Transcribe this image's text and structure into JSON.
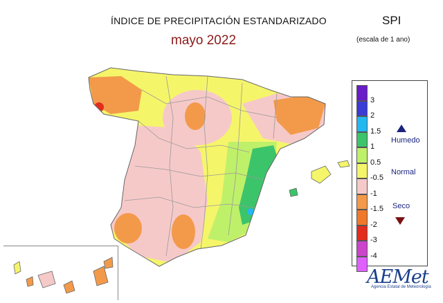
{
  "header": {
    "title": "ÍNDICE DE PRECIPITACIÓN ESTANDARIZADO",
    "subtitle": "mayo 2022",
    "index_label": "SPI",
    "scale_note": "(escala de 1 ano)"
  },
  "legend": {
    "ticks": [
      "3",
      "2",
      "1.5",
      "1",
      "0.5",
      "-0.5",
      "-1",
      "-1.5",
      "-2",
      "-3",
      "-4"
    ],
    "colors": [
      "#6a1cc8",
      "#3b3bd6",
      "#22b8f0",
      "#3cc46a",
      "#bff06a",
      "#f5f56a",
      "#f6c9c9",
      "#f39a4a",
      "#f0782a",
      "#e32b1e",
      "#cc44cc",
      "#e060ff"
    ],
    "categories": {
      "wet": "Humedo",
      "normal": "Normal",
      "dry": "Seco"
    }
  },
  "logo": {
    "name": "AEMet",
    "tagline": "Agencia Estatal de Meteorología"
  },
  "icons": {
    "wet_symbol": "triangle-up-icon",
    "dry_symbol": "triangle-down-icon"
  }
}
